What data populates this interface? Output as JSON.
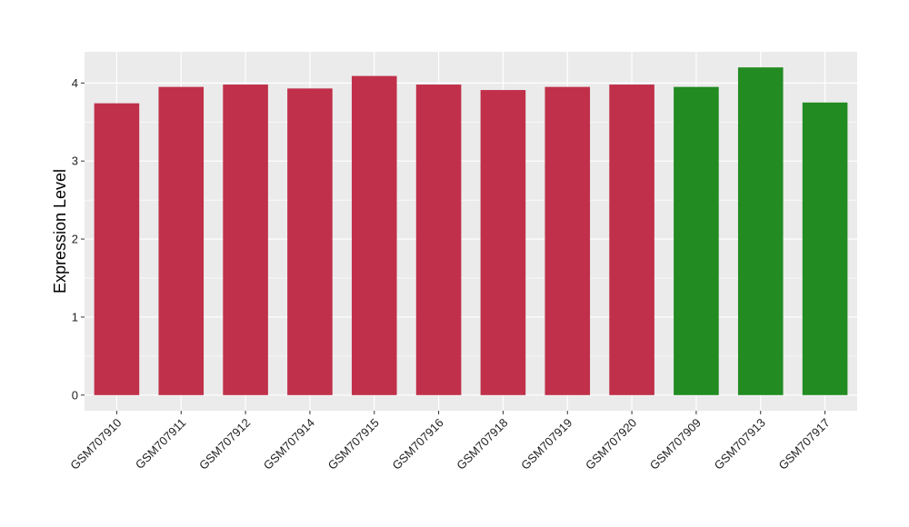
{
  "chart_data": {
    "type": "bar",
    "title": "",
    "xlabel": "",
    "ylabel": "Expression Level",
    "ylim": [
      -0.2,
      4.4
    ],
    "yticks": [
      0,
      1,
      2,
      3,
      4
    ],
    "grid": true,
    "panel_background": "#ebebeb",
    "categories": [
      "GSM707910",
      "GSM707911",
      "GSM707912",
      "GSM707914",
      "GSM707915",
      "GSM707916",
      "GSM707918",
      "GSM707919",
      "GSM707920",
      "GSM707909",
      "GSM707913",
      "GSM707917"
    ],
    "values": [
      3.74,
      3.95,
      3.98,
      3.93,
      4.09,
      3.98,
      3.91,
      3.95,
      3.98,
      3.95,
      4.2,
      3.75
    ],
    "bar_colors": [
      "#c0304a",
      "#c0304a",
      "#c0304a",
      "#c0304a",
      "#c0304a",
      "#c0304a",
      "#c0304a",
      "#c0304a",
      "#c0304a",
      "#228b22",
      "#228b22",
      "#228b22"
    ]
  }
}
